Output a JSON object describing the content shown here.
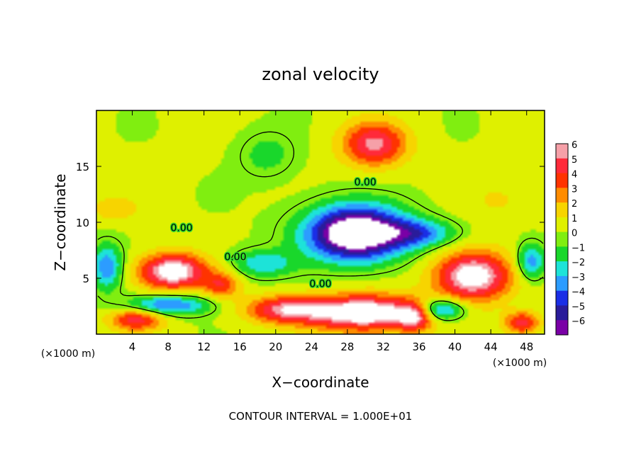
{
  "chart_data": {
    "type": "heatmap",
    "title": "zonal velocity",
    "xlabel": "X−coordinate",
    "ylabel": "Z−coordinate",
    "x_unit_label": "(×1000 m)",
    "y_unit_label": "(×1000 m)",
    "footer": "CONTOUR INTERVAL = 1.000E+01",
    "xlim": [
      0,
      50
    ],
    "ylim": [
      0,
      20
    ],
    "x_ticks": [
      4,
      8,
      12,
      16,
      20,
      24,
      28,
      32,
      36,
      40,
      44,
      48
    ],
    "y_ticks": [
      5,
      10,
      15
    ],
    "x_tick_labels": [
      "4",
      "8",
      "12",
      "16",
      "20",
      "24",
      "28",
      "32",
      "36",
      "40",
      "44",
      "48"
    ],
    "y_tick_labels": [
      "5",
      "10",
      "15"
    ],
    "colorbar": {
      "levels": [
        6,
        5,
        4,
        3,
        2,
        1,
        0,
        -1,
        -2,
        -3,
        -4,
        -5,
        -6
      ],
      "labels": [
        "6",
        "5",
        "4",
        "3",
        "2",
        "1",
        "0",
        "−1",
        "−2",
        "−3",
        "−4",
        "−5",
        "−6"
      ],
      "colors": [
        "#f6a0a8",
        "#ff2a3a",
        "#ff3300",
        "#ff8c00",
        "#f7d400",
        "#dff000",
        "#80ee10",
        "#19d72b",
        "#1de3d8",
        "#2c9cff",
        "#1a2ee6",
        "#2a1c9a",
        "#7a00a6"
      ]
    },
    "contour_labels": [
      {
        "text": "0.00",
        "x": 30,
        "z": 13.3
      },
      {
        "text": "0.00",
        "x": 9.5,
        "z": 9.2
      },
      {
        "text": "0.00",
        "x": 15.5,
        "z": 6.6
      },
      {
        "text": "0.00",
        "x": 25,
        "z": 4.2
      }
    ],
    "field_colors": {
      "background": "#33d92b",
      "strong_positive": "#ffffff",
      "strong_negative": "#ffffff"
    },
    "features": [
      {
        "kind": "max",
        "x": 31,
        "z": 17,
        "amp": 5.2,
        "sx": 3.6,
        "sz": 2.0
      },
      {
        "kind": "max",
        "x": 8.5,
        "z": 5.6,
        "amp": 7.0,
        "sx": 3.8,
        "sz": 1.6
      },
      {
        "kind": "max",
        "x": 30,
        "z": 1.9,
        "amp": 7.5,
        "sx": 6.5,
        "sz": 1.6
      },
      {
        "kind": "max",
        "x": 42,
        "z": 5.2,
        "amp": 7.0,
        "sx": 4.2,
        "sz": 2.2
      },
      {
        "kind": "max",
        "x": 21,
        "z": 2.2,
        "amp": 4.8,
        "sx": 4.5,
        "sz": 1.2
      },
      {
        "kind": "max",
        "x": 14,
        "z": 4.4,
        "amp": 3.5,
        "sx": 2.0,
        "sz": 1.2
      },
      {
        "kind": "max",
        "x": 4.5,
        "z": 1.3,
        "amp": 4.5,
        "sx": 3.0,
        "sz": 1.0
      },
      {
        "kind": "max",
        "x": 35.5,
        "z": 1.5,
        "amp": 4.0,
        "sx": 1.8,
        "sz": 1.2
      },
      {
        "kind": "max",
        "x": 47.5,
        "z": 1.0,
        "amp": 4.5,
        "sx": 2.0,
        "sz": 1.0
      },
      {
        "kind": "min",
        "x": 29,
        "z": 9.0,
        "amp": -9.5,
        "sx": 5.5,
        "sz": 2.4
      },
      {
        "kind": "min",
        "x": 8.0,
        "z": 2.6,
        "amp": -4.5,
        "sx": 4.5,
        "sz": 0.9
      },
      {
        "kind": "min",
        "x": 1.2,
        "z": 6.0,
        "amp": -4.0,
        "sx": 1.7,
        "sz": 2.0
      },
      {
        "kind": "min",
        "x": 48.5,
        "z": 6.5,
        "amp": -4.0,
        "sx": 1.6,
        "sz": 1.6
      },
      {
        "kind": "min",
        "x": 38.5,
        "z": 2.2,
        "amp": -5.0,
        "sx": 2.6,
        "sz": 1.0
      },
      {
        "kind": "min",
        "x": 36,
        "z": 9.0,
        "amp": -3.5,
        "sx": 4.0,
        "sz": 1.2
      },
      {
        "kind": "min",
        "x": 18.5,
        "z": 6.3,
        "amp": -3.0,
        "sx": 3.5,
        "sz": 1.2
      },
      {
        "kind": "min",
        "x": 19,
        "z": 16,
        "amp": -1.6,
        "sx": 3.0,
        "sz": 2.0
      },
      {
        "kind": "max",
        "x": 2.0,
        "z": 11.2,
        "amp": 1.5,
        "sx": 3.0,
        "sz": 1.2
      },
      {
        "kind": "max",
        "x": 45,
        "z": 12,
        "amp": 1.0,
        "sx": 4.0,
        "sz": 2.0
      }
    ]
  }
}
